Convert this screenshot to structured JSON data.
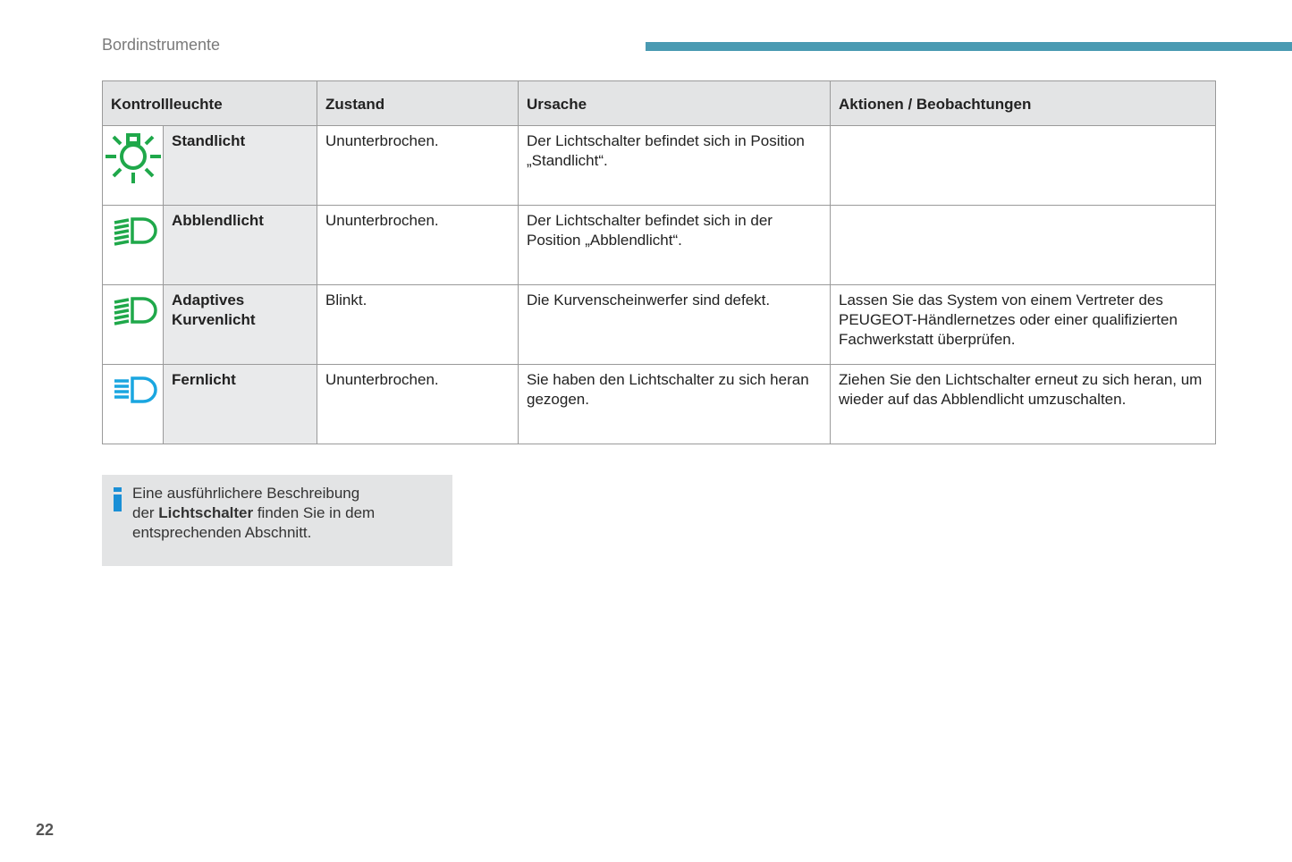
{
  "header": {
    "section": "Bordinstrumente",
    "accent_color": "#4a9ab2"
  },
  "table": {
    "columns": [
      "Kontrollleuchte",
      "Zustand",
      "Ursache",
      "Aktionen / Beobachtungen"
    ],
    "rows": [
      {
        "icon": "sidelight-icon",
        "icon_color": "#1fa84a",
        "name": "Standlicht",
        "state": "Ununterbrochen.",
        "cause": "Der Lichtschalter befindet sich in Position „Standlicht“.",
        "action": ""
      },
      {
        "icon": "dipped-beam-icon",
        "icon_color": "#1fa84a",
        "name": "Abblendlicht",
        "state": "Ununterbrochen.",
        "cause": "Der Lichtschalter befindet sich in der Position „Abblendlicht“.",
        "action": ""
      },
      {
        "icon": "adaptive-cornering-light-icon",
        "icon_color": "#1fa84a",
        "name": "Adaptives Kurvenlicht",
        "state": "Blinkt.",
        "cause": "Die Kurvenscheinwerfer sind defekt.",
        "action": "Lassen Sie das System von einem Vertreter des PEUGEOT-Händlernetzes oder einer qualifizierten Fachwerkstatt überprüfen."
      },
      {
        "icon": "main-beam-icon",
        "icon_color": "#1aa6e0",
        "name": "Fernlicht",
        "state": "Ununterbrochen.",
        "cause": "Sie haben den Lichtschalter zu sich heran gezogen.",
        "action": "Ziehen Sie den Lichtschalter erneut zu sich heran, um wieder auf das Abblendlicht umzuschalten."
      }
    ]
  },
  "info": {
    "icon": "info-icon",
    "line1": "Eine ausführlichere Beschreibung",
    "pre": "der ",
    "bold": "Lichtschalter",
    "post": " finden Sie in dem",
    "line3": "entsprechenden Abschnitt."
  },
  "page_number": "22"
}
